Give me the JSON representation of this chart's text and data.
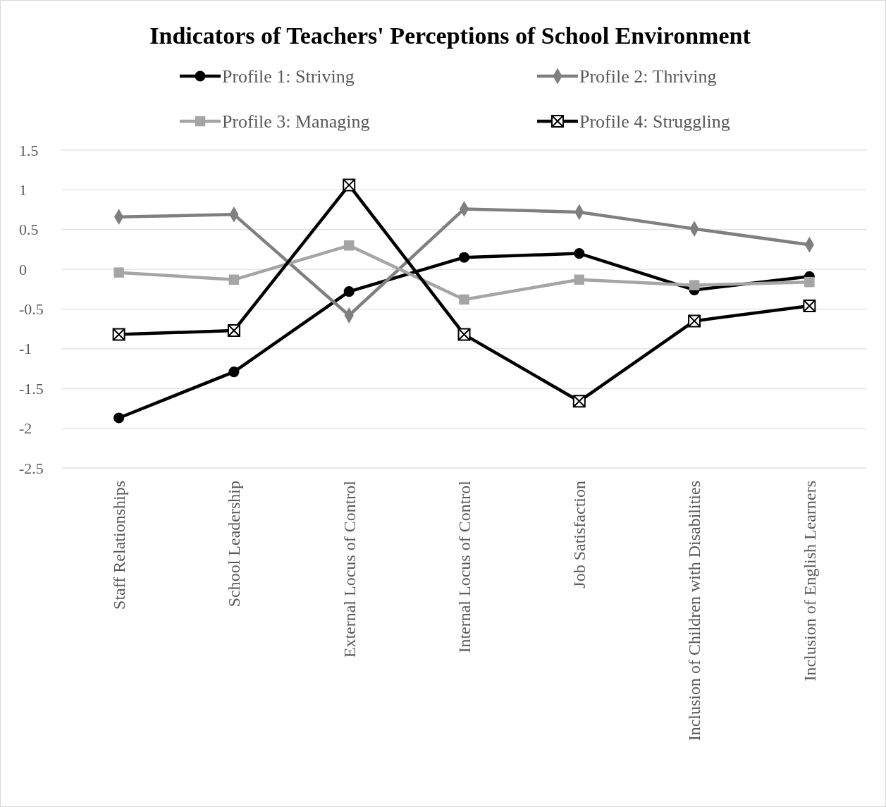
{
  "chart_data": {
    "type": "line",
    "title": "Indicators of Teachers' Perceptions of School Environment",
    "categories": [
      "Staff Relationships",
      "School Leadership",
      "External Locus of Control",
      "Internal Locus of Control",
      "Job Satisfaction",
      "Inclusion of Children with Disabilities",
      "Inclusion of English Learners"
    ],
    "series": [
      {
        "name": "Profile 1: Striving",
        "color": "#000000",
        "marker": "circle",
        "values": [
          -1.87,
          -1.29,
          -0.28,
          0.15,
          0.2,
          -0.26,
          -0.09
        ]
      },
      {
        "name": "Profile 2: Thriving",
        "color": "#7f7f7f",
        "marker": "diamond",
        "values": [
          0.66,
          0.69,
          -0.58,
          0.76,
          0.72,
          0.51,
          0.31
        ]
      },
      {
        "name": "Profile 3: Managing",
        "color": "#a5a5a5",
        "marker": "square",
        "values": [
          -0.04,
          -0.13,
          0.3,
          -0.38,
          -0.13,
          -0.2,
          -0.16
        ]
      },
      {
        "name": "Profile 4: Struggling",
        "color": "#000000",
        "marker": "cross",
        "values": [
          -0.82,
          -0.77,
          1.06,
          -0.82,
          -1.66,
          -0.65,
          -0.46
        ]
      }
    ],
    "ylim": [
      -2.5,
      1.5
    ],
    "yticks": [
      -2.5,
      -2,
      -1.5,
      -1,
      -0.5,
      0,
      0.5,
      1,
      1.5
    ],
    "grid": "y",
    "legend": "top",
    "line_style": "solid"
  }
}
